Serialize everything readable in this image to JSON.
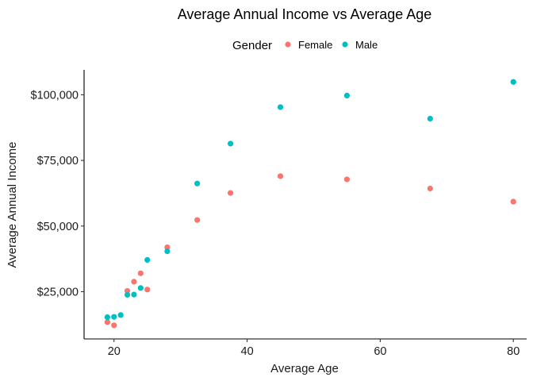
{
  "chart_data": {
    "type": "scatter",
    "title": "Average Annual Income vs Average Age",
    "xlabel": "Average Age",
    "ylabel": "Average Annual Income",
    "xlim": [
      15.5,
      82
    ],
    "ylim": [
      7000,
      109500
    ],
    "x_ticks": [
      20,
      40,
      60,
      80
    ],
    "x_tick_labels": [
      "20",
      "40",
      "60",
      "80"
    ],
    "y_ticks": [
      25000,
      50000,
      75000,
      100000
    ],
    "y_tick_labels": [
      "$25,000",
      "$50,000",
      "$75,000",
      "$100,000"
    ],
    "grid": false,
    "legend": {
      "title": "Gender",
      "position": "top"
    },
    "series": [
      {
        "name": "Female",
        "color": "#F8766D",
        "points": [
          {
            "x": 19,
            "y": 13400
          },
          {
            "x": 20,
            "y": 12200
          },
          {
            "x": 22,
            "y": 25300
          },
          {
            "x": 23,
            "y": 28800
          },
          {
            "x": 24,
            "y": 32000
          },
          {
            "x": 25,
            "y": 25800
          },
          {
            "x": 28,
            "y": 41900
          },
          {
            "x": 32.5,
            "y": 52300
          },
          {
            "x": 37.5,
            "y": 62600
          },
          {
            "x": 45,
            "y": 69000
          },
          {
            "x": 55,
            "y": 67800
          },
          {
            "x": 67.5,
            "y": 64300
          },
          {
            "x": 80,
            "y": 59300
          }
        ]
      },
      {
        "name": "Male",
        "color": "#00BFC4",
        "points": [
          {
            "x": 19,
            "y": 15300
          },
          {
            "x": 20,
            "y": 15400
          },
          {
            "x": 21,
            "y": 16100
          },
          {
            "x": 22,
            "y": 23800
          },
          {
            "x": 23,
            "y": 23900
          },
          {
            "x": 24,
            "y": 26400
          },
          {
            "x": 25,
            "y": 37100
          },
          {
            "x": 28,
            "y": 40400
          },
          {
            "x": 32.5,
            "y": 66200
          },
          {
            "x": 37.5,
            "y": 81400
          },
          {
            "x": 45,
            "y": 95300
          },
          {
            "x": 55,
            "y": 99700
          },
          {
            "x": 67.5,
            "y": 90900
          },
          {
            "x": 80,
            "y": 104900
          }
        ]
      }
    ]
  }
}
